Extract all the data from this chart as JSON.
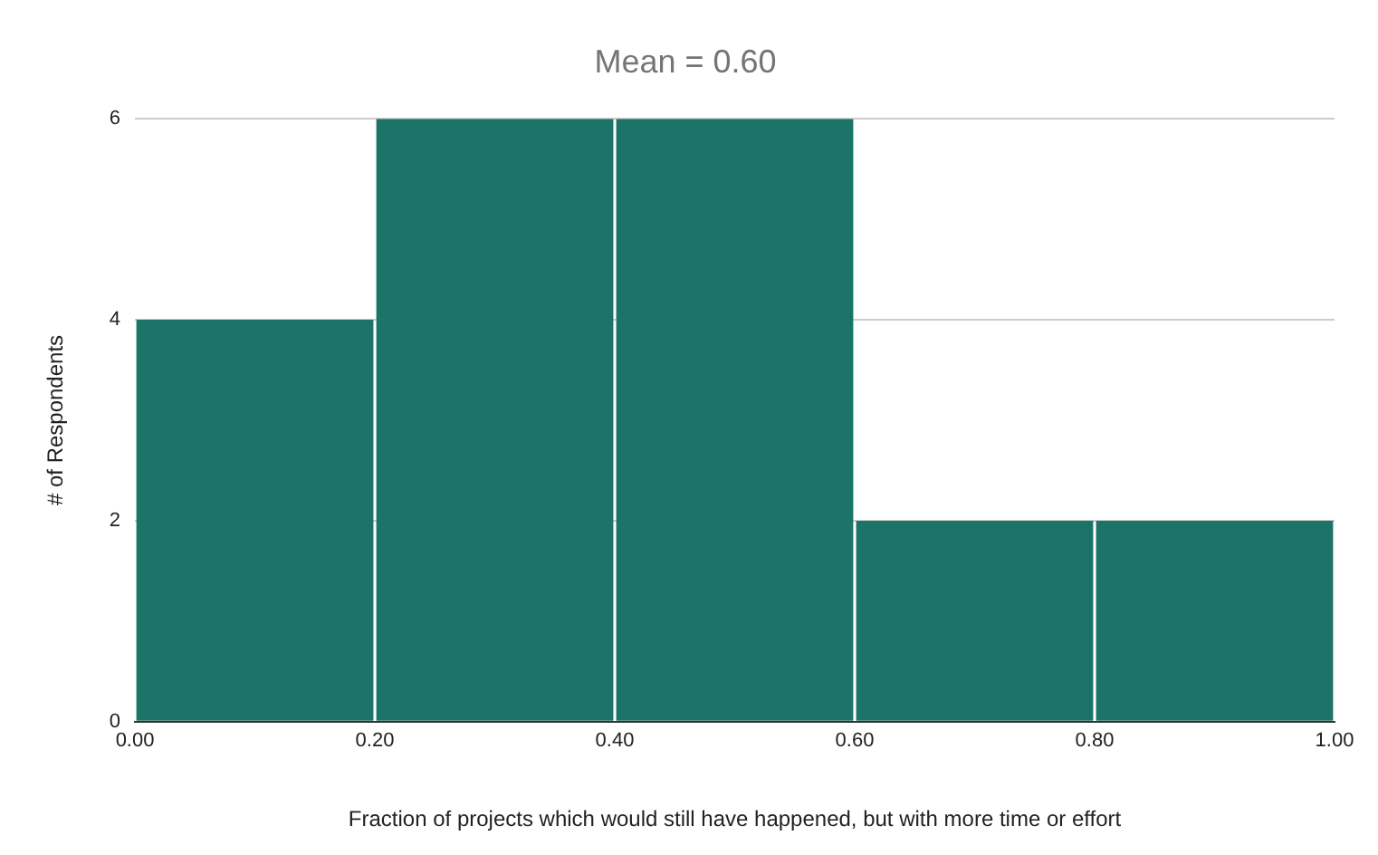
{
  "chart_data": {
    "type": "histogram",
    "title": "Mean = 0.60",
    "xlabel": "Fraction of projects which would still have happened, but with more time or effort",
    "ylabel": "# of Respondents",
    "bins": [
      0,
      0.2,
      0.4,
      0.6,
      0.8,
      1.0
    ],
    "values": [
      4,
      6,
      6,
      2,
      2
    ],
    "color": "#1c7367",
    "xlim": [
      0,
      1.0
    ],
    "xticks": [
      {
        "value": 0,
        "label": "0.00"
      },
      {
        "value": 0.2,
        "label": "0.20"
      },
      {
        "value": 0.4,
        "label": "0.40"
      },
      {
        "value": 0.6,
        "label": "0.60"
      },
      {
        "value": 0.8,
        "label": "0.80"
      },
      {
        "value": 1.0,
        "label": "1.00"
      }
    ],
    "ylim": [
      0,
      6
    ],
    "yticks": [
      0,
      2,
      4,
      6
    ],
    "grid": "y"
  }
}
